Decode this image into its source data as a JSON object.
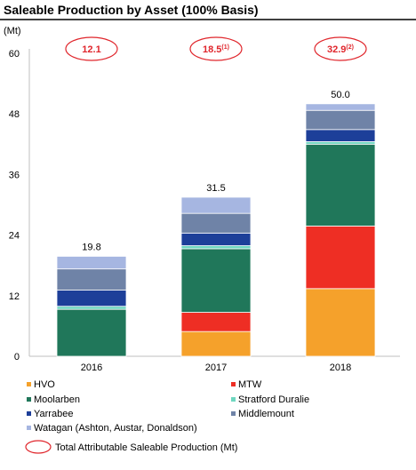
{
  "chart_data": {
    "type": "bar",
    "stacked": true,
    "title": "Saleable Production by Asset (100% Basis)",
    "ylabel": "(Mt)",
    "ylim": [
      0,
      60
    ],
    "yticks": [
      0,
      12,
      24,
      36,
      48,
      60
    ],
    "grid": false,
    "legend_position": "bottom",
    "categories": [
      "2016",
      "2017",
      "2018"
    ],
    "series": [
      {
        "name": "HVO",
        "color": "#f5a12b",
        "values": [
          0,
          4.9,
          13.4
        ]
      },
      {
        "name": "MTW",
        "color": "#ee2e24",
        "values": [
          0,
          3.8,
          12.4
        ]
      },
      {
        "name": "Moolarben",
        "color": "#20775a",
        "values": [
          9.3,
          12.6,
          16.2
        ]
      },
      {
        "name": "Stratford Duralie",
        "color": "#6fd7c0",
        "values": [
          0.6,
          0.6,
          0.5
        ]
      },
      {
        "name": "Yarrabee",
        "color": "#1d3f99",
        "values": [
          3.2,
          2.5,
          2.4
        ]
      },
      {
        "name": "Middlemount",
        "color": "#6f83a7",
        "values": [
          4.2,
          3.9,
          3.8
        ]
      },
      {
        "name": "Watagan (Ashton, Austar, Donaldson)",
        "color": "#a6b6e1",
        "values": [
          2.5,
          3.2,
          1.3
        ]
      }
    ],
    "totals": [
      "19.8",
      "31.5",
      "50.0"
    ],
    "attributable": [
      {
        "value": "12.1",
        "note": ""
      },
      {
        "value": "18.5",
        "note": "(1)"
      },
      {
        "value": "32.9",
        "note": "(2)"
      }
    ],
    "attributable_legend": "Total Attributable Saleable Production (Mt)"
  }
}
